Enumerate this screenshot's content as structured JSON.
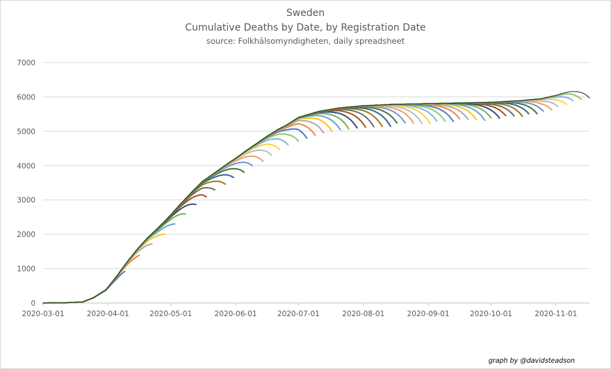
{
  "chart_data": {
    "type": "line",
    "title": "Sweden",
    "subtitle": "Cumulative Deaths by Date, by Registration Date",
    "source": "source: Folkhälsomyndigheten, daily spreadsheet",
    "credit": "graph by @davidsteadson",
    "xlabel": "",
    "ylabel": "",
    "ylim": [
      0,
      7000
    ],
    "yticks": [
      "0",
      "1000",
      "2000",
      "3000",
      "4000",
      "5000",
      "6000",
      "7000"
    ],
    "xlim": [
      "2020-03-01",
      "2020-11-17"
    ],
    "xticks": [
      "2020-03-01",
      "2020-04-01",
      "2020-05-01",
      "2020-06-01",
      "2020-07-01",
      "2020-08-01",
      "2020-09-01",
      "2020-10-01",
      "2020-11-01"
    ],
    "grid": "horizontal",
    "legend": "none",
    "latest_curve": {
      "x": [
        "2020-03-01",
        "2020-03-11",
        "2020-03-20",
        "2020-03-25",
        "2020-03-31",
        "2020-04-05",
        "2020-04-10",
        "2020-04-15",
        "2020-04-20",
        "2020-04-25",
        "2020-05-01",
        "2020-05-06",
        "2020-05-11",
        "2020-05-16",
        "2020-05-21",
        "2020-05-26",
        "2020-06-01",
        "2020-06-06",
        "2020-06-11",
        "2020-06-16",
        "2020-06-21",
        "2020-06-26",
        "2020-07-01",
        "2020-07-11",
        "2020-07-21",
        "2020-08-01",
        "2020-08-15",
        "2020-09-01",
        "2020-09-15",
        "2020-10-01",
        "2020-10-15",
        "2020-10-25",
        "2020-11-01",
        "2020-11-08",
        "2020-11-17"
      ],
      "values": [
        0,
        5,
        30,
        150,
        380,
        760,
        1180,
        1560,
        1900,
        2180,
        2560,
        2900,
        3220,
        3530,
        3740,
        3960,
        4210,
        4430,
        4640,
        4850,
        5040,
        5200,
        5400,
        5580,
        5680,
        5740,
        5780,
        5800,
        5820,
        5840,
        5890,
        5950,
        6060,
        6220,
        6380
      ]
    },
    "vintages": 55,
    "colors": [
      "#4472c4",
      "#ed7d31",
      "#a5a5a5",
      "#ffc000",
      "#5b9bd5",
      "#70ad47",
      "#264478",
      "#9e480e",
      "#636363",
      "#997300",
      "#255e91",
      "#43682b",
      "#698ed0",
      "#f1975a",
      "#b7b7b7",
      "#ffcd33",
      "#7cafdd",
      "#8cc168"
    ]
  }
}
